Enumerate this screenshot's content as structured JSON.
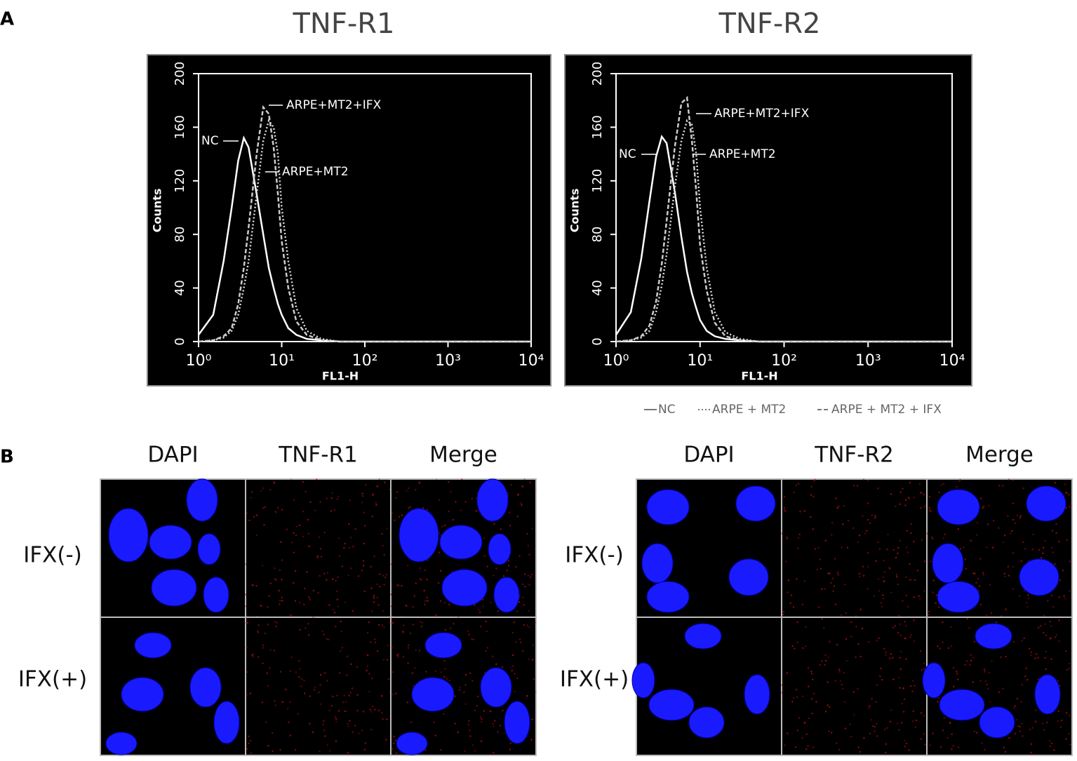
{
  "panel_labels": [
    "A",
    "B"
  ],
  "chart_data": [
    {
      "type": "line",
      "title": "TNF-R1",
      "xlabel": "FL1-H",
      "ylabel": "Counts",
      "xscale": "log",
      "xlim": [
        1,
        10000
      ],
      "xticks": [
        {
          "value": 1,
          "label": "10⁰"
        },
        {
          "value": 10,
          "label": "10¹"
        },
        {
          "value": 100,
          "label": "10²"
        },
        {
          "value": 1000,
          "label": "10³"
        },
        {
          "value": 10000,
          "label": "10⁴"
        }
      ],
      "ylim": [
        0,
        200
      ],
      "yticks": [
        0,
        40,
        80,
        120,
        160,
        200
      ],
      "annotations": [
        "NC",
        "ARPE+MT2+IFX",
        "ARPE+MT2"
      ],
      "x": [
        1,
        1.5,
        2,
        2.5,
        3,
        3.5,
        4,
        5,
        6,
        7,
        8,
        9,
        10,
        12,
        15,
        20,
        30,
        50,
        100,
        1000,
        10000
      ],
      "series": [
        {
          "name": "NC",
          "color": "#ffffff",
          "style": "solid",
          "values": [
            5,
            20,
            60,
            100,
            135,
            152,
            145,
            110,
            80,
            55,
            40,
            28,
            20,
            10,
            5,
            2,
            1,
            0,
            0,
            0,
            0
          ]
        },
        {
          "name": "ARPE + MT2",
          "color": "#dddddd",
          "style": "dotted",
          "values": [
            0,
            1,
            3,
            8,
            20,
            40,
            60,
            110,
            150,
            165,
            160,
            140,
            100,
            60,
            25,
            8,
            2,
            0,
            0,
            0,
            0
          ]
        },
        {
          "name": "ARPE + MT2 + IFX",
          "color": "#cccccc",
          "style": "dashed",
          "values": [
            0,
            1,
            4,
            10,
            28,
            55,
            85,
            140,
            175,
            170,
            145,
            110,
            75,
            40,
            15,
            5,
            1,
            0,
            0,
            0,
            0
          ]
        }
      ]
    },
    {
      "type": "line",
      "title": "TNF-R2",
      "xlabel": "FL1-H",
      "ylabel": "Counts",
      "xscale": "log",
      "xlim": [
        1,
        10000
      ],
      "xticks": [
        {
          "value": 1,
          "label": "10⁰"
        },
        {
          "value": 10,
          "label": "10¹"
        },
        {
          "value": 100,
          "label": "10²"
        },
        {
          "value": 1000,
          "label": "10³"
        },
        {
          "value": 10000,
          "label": "10⁴"
        }
      ],
      "ylim": [
        0,
        200
      ],
      "yticks": [
        0,
        40,
        80,
        120,
        160,
        200
      ],
      "annotations": [
        "NC",
        "ARPE+MT2+IFX",
        "ARPE+MT2"
      ],
      "legend": true,
      "x": [
        1,
        1.5,
        2,
        2.5,
        3,
        3.5,
        4,
        5,
        6,
        7,
        8,
        9,
        10,
        12,
        15,
        20,
        30,
        50,
        100,
        1000,
        10000
      ],
      "series": [
        {
          "name": "NC",
          "color": "#ffffff",
          "style": "solid",
          "values": [
            5,
            22,
            62,
            105,
            138,
            153,
            148,
            112,
            78,
            52,
            36,
            25,
            16,
            8,
            4,
            2,
            1,
            0,
            0,
            0,
            0
          ]
        },
        {
          "name": "ARPE + MT2",
          "color": "#dddddd",
          "style": "dotted",
          "values": [
            0,
            1,
            3,
            8,
            22,
            42,
            65,
            115,
            150,
            165,
            162,
            140,
            100,
            55,
            22,
            7,
            2,
            0,
            0,
            0,
            0
          ]
        },
        {
          "name": "ARPE + MT2 + IFX",
          "color": "#cccccc",
          "style": "dashed",
          "values": [
            0,
            1,
            4,
            12,
            30,
            58,
            90,
            145,
            178,
            182,
            150,
            112,
            72,
            38,
            14,
            4,
            1,
            0,
            0,
            0,
            0
          ]
        }
      ]
    }
  ],
  "microscopy": [
    {
      "columns": [
        "DAPI",
        "TNF-R1",
        "Merge"
      ],
      "rows": [
        "IFX(-)",
        "IFX(+)"
      ]
    },
    {
      "columns": [
        "DAPI",
        "TNF-R2",
        "Merge"
      ],
      "rows": [
        "IFX(-)",
        "IFX(+)"
      ]
    }
  ]
}
